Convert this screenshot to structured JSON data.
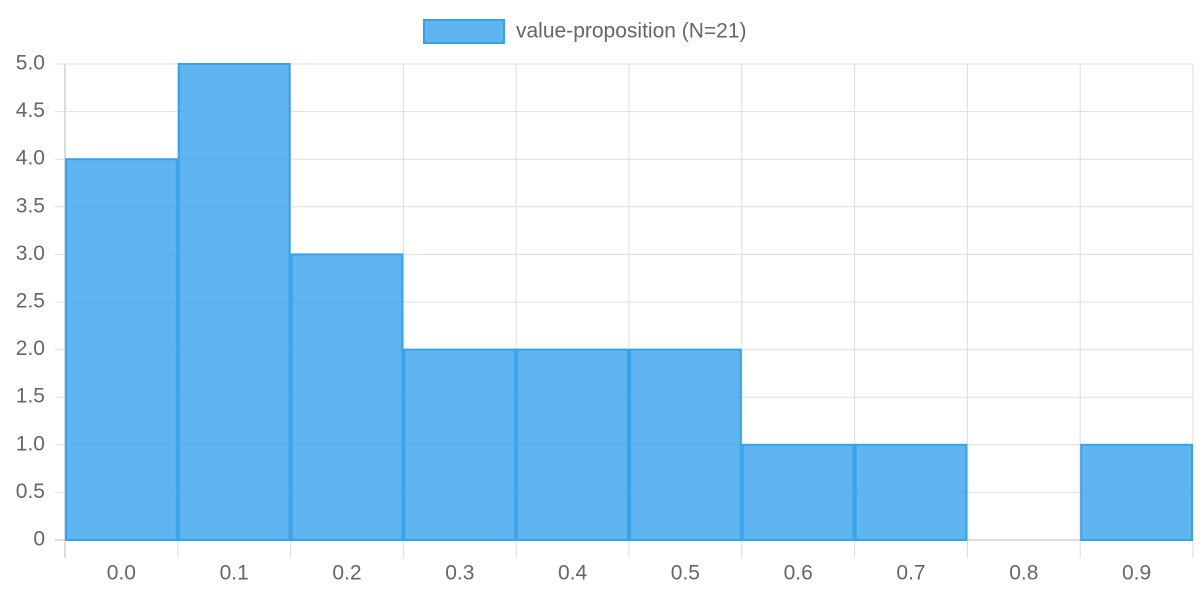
{
  "chart_data": {
    "type": "bar",
    "categories": [
      "0.0",
      "0.1",
      "0.2",
      "0.3",
      "0.4",
      "0.5",
      "0.6",
      "0.7",
      "0.8",
      "0.9"
    ],
    "series": [
      {
        "name": "value-proposition (N=21)",
        "color": "#36a2eb",
        "values": [
          4,
          5,
          3,
          2,
          2,
          2,
          1,
          1,
          0,
          1
        ]
      }
    ],
    "ylim": [
      0,
      5
    ],
    "yticks": [
      0,
      0.5,
      {
        "value": 1,
        "label": "1.0"
      },
      1.5,
      {
        "value": 2,
        "label": "2.0"
      },
      2.5,
      {
        "value": 3,
        "label": "3.0"
      },
      3.5,
      {
        "value": 4,
        "label": "4.0"
      },
      4.5,
      {
        "value": 5,
        "label": "5.0"
      }
    ],
    "grid": true,
    "legend": "top"
  }
}
